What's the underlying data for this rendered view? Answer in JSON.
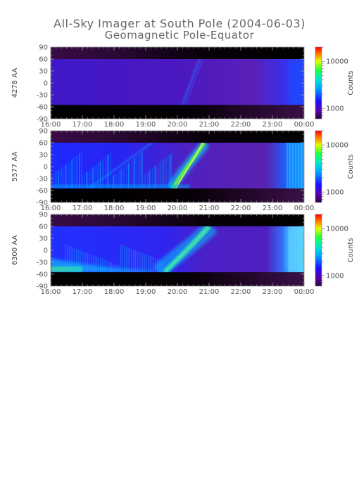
{
  "title": "All-Sky Imager at South Pole (2004-06-03)",
  "subtitle": "Geomagnetic Pole-Equator",
  "chart_data": {
    "type": "heatmap",
    "title": "All-Sky Imager at South Pole (2004-06-03)",
    "subtitle": "Geomagnetic Pole-Equator",
    "x_ticks": [
      "16:00",
      "17:00",
      "18:00",
      "19:00",
      "20:00",
      "21:00",
      "22:00",
      "23:00",
      "00:00"
    ],
    "x_range_hours": [
      16,
      24
    ],
    "y_ticks": [
      90,
      60,
      30,
      0,
      -30,
      -60,
      -90
    ],
    "y_range": [
      -90,
      90
    ],
    "colorbar": {
      "label": "Counts",
      "ticks": [
        10000,
        1000
      ],
      "scale": "log"
    },
    "panels": [
      {
        "ylabel": "4278 AA",
        "valid_range": [
          -55,
          60
        ]
      },
      {
        "ylabel": "5577 AA",
        "valid_range": [
          -55,
          60
        ]
      },
      {
        "ylabel": "6300 AA",
        "valid_range": [
          -55,
          60
        ]
      }
    ]
  }
}
